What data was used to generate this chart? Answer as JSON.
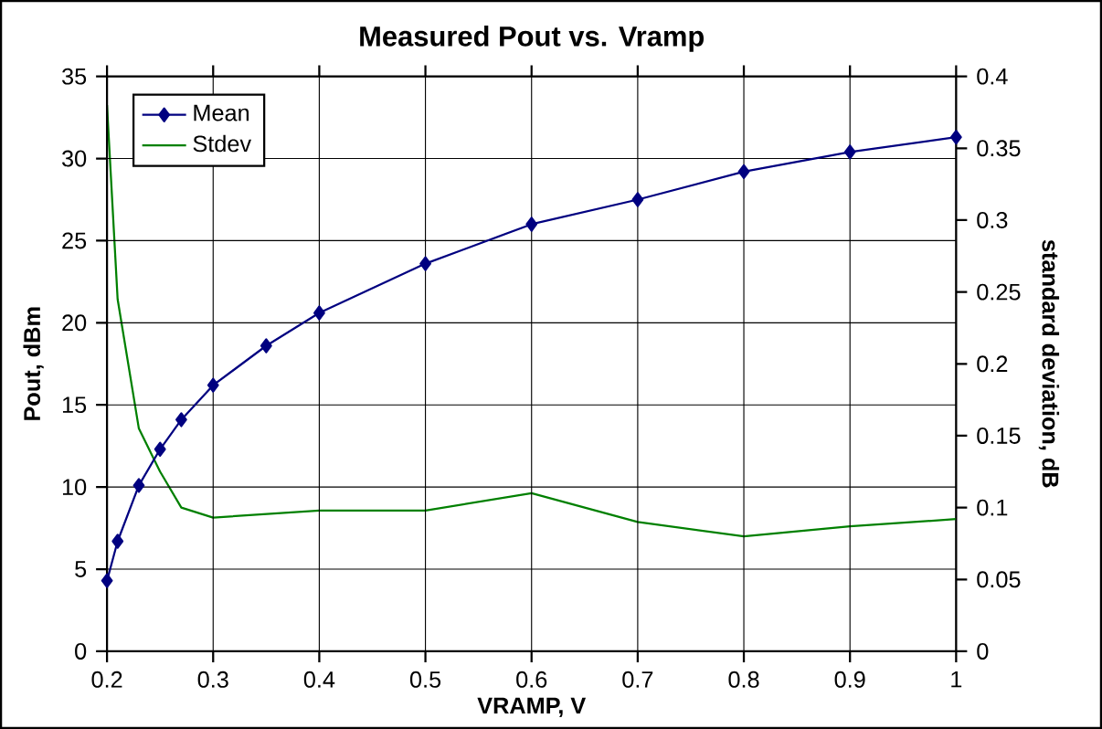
{
  "chart_data": {
    "type": "line",
    "title": "Measured Pout vs. Vramp",
    "xlabel": "VRAMP, V",
    "ylabel": "Pout, dBm",
    "y2label": "standard deviation, dB",
    "xlim": [
      0.2,
      1
    ],
    "xticks": [
      0.2,
      0.3,
      0.4,
      0.5,
      0.6,
      0.7,
      0.8,
      0.9,
      1
    ],
    "ylim": [
      0,
      35
    ],
    "yticks": [
      0,
      5,
      10,
      15,
      20,
      25,
      30,
      35
    ],
    "y2lim": [
      0,
      0.4
    ],
    "y2ticks": [
      0,
      0.05,
      0.1,
      0.15,
      0.2,
      0.25,
      0.3,
      0.35,
      0.4
    ],
    "grid": true,
    "legend": "top left",
    "series": [
      {
        "name": "Mean",
        "color": "#000080",
        "marker": "diamond",
        "x": [
          0.2,
          0.21,
          0.23,
          0.25,
          0.27,
          0.3,
          0.35,
          0.4,
          0.5,
          0.6,
          0.7,
          0.8,
          0.9,
          1.0
        ],
        "values": [
          4.3,
          6.7,
          10.1,
          12.3,
          14.1,
          16.2,
          18.6,
          20.6,
          23.6,
          26.0,
          27.5,
          29.2,
          30.4,
          31.3
        ]
      },
      {
        "name": "Stdev",
        "color": "#008000",
        "marker": "none",
        "axis": "y2",
        "x": [
          0.2,
          0.21,
          0.23,
          0.25,
          0.27,
          0.3,
          0.4,
          0.5,
          0.6,
          0.7,
          0.8,
          0.9,
          1.0
        ],
        "values": [
          0.38,
          0.245,
          0.155,
          0.125,
          0.1,
          0.093,
          0.098,
          0.098,
          0.11,
          0.09,
          0.08,
          0.087,
          0.092
        ]
      }
    ]
  }
}
